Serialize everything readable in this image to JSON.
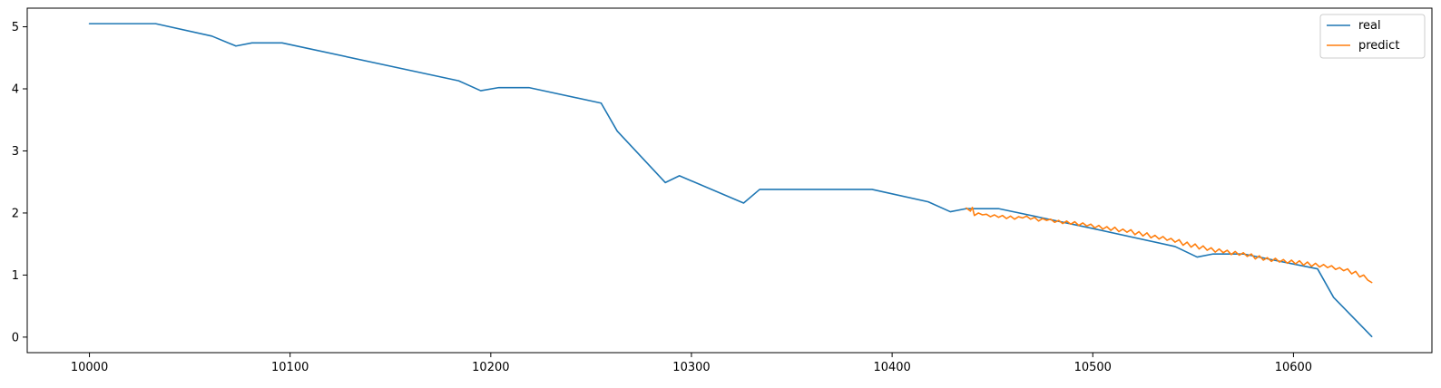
{
  "chart_data": {
    "type": "line",
    "title": "",
    "xlabel": "",
    "ylabel": "",
    "xlim": [
      9969,
      10669
    ],
    "ylim": [
      -0.25,
      5.3
    ],
    "xticks": [
      10000,
      10100,
      10200,
      10300,
      10400,
      10500,
      10600
    ],
    "yticks": [
      0,
      1,
      2,
      3,
      4,
      5
    ],
    "grid": false,
    "legend_position": "top-right",
    "series": [
      {
        "name": "real",
        "color": "#1f77b4",
        "points": [
          [
            10000,
            5.05
          ],
          [
            10033,
            5.05
          ],
          [
            10061,
            4.85
          ],
          [
            10073,
            4.69
          ],
          [
            10081,
            4.74
          ],
          [
            10096,
            4.74
          ],
          [
            10184,
            4.13
          ],
          [
            10195,
            3.97
          ],
          [
            10204,
            4.02
          ],
          [
            10219,
            4.02
          ],
          [
            10255,
            3.77
          ],
          [
            10263,
            3.32
          ],
          [
            10287,
            2.49
          ],
          [
            10294,
            2.6
          ],
          [
            10326,
            2.16
          ],
          [
            10334,
            2.38
          ],
          [
            10390,
            2.38
          ],
          [
            10418,
            2.18
          ],
          [
            10429,
            2.02
          ],
          [
            10437,
            2.07
          ],
          [
            10453,
            2.07
          ],
          [
            10500,
            1.75
          ],
          [
            10541,
            1.46
          ],
          [
            10552,
            1.29
          ],
          [
            10560,
            1.34
          ],
          [
            10575,
            1.34
          ],
          [
            10612,
            1.1
          ],
          [
            10620,
            0.64
          ],
          [
            10639,
            0.01
          ]
        ]
      },
      {
        "name": "predict",
        "color": "#ff7f0e",
        "points": [
          [
            10437,
            2.08
          ],
          [
            10439,
            2.03
          ],
          [
            10440,
            2.09
          ],
          [
            10441,
            1.96
          ],
          [
            10443,
            2.0
          ],
          [
            10445,
            1.97
          ],
          [
            10447,
            1.98
          ],
          [
            10449,
            1.94
          ],
          [
            10451,
            1.97
          ],
          [
            10453,
            1.93
          ],
          [
            10455,
            1.96
          ],
          [
            10457,
            1.91
          ],
          [
            10459,
            1.95
          ],
          [
            10461,
            1.9
          ],
          [
            10463,
            1.94
          ],
          [
            10465,
            1.92
          ],
          [
            10467,
            1.95
          ],
          [
            10469,
            1.9
          ],
          [
            10471,
            1.93
          ],
          [
            10473,
            1.87
          ],
          [
            10475,
            1.91
          ],
          [
            10477,
            1.88
          ],
          [
            10479,
            1.9
          ],
          [
            10481,
            1.85
          ],
          [
            10483,
            1.88
          ],
          [
            10485,
            1.83
          ],
          [
            10487,
            1.87
          ],
          [
            10489,
            1.82
          ],
          [
            10491,
            1.86
          ],
          [
            10493,
            1.8
          ],
          [
            10495,
            1.84
          ],
          [
            10497,
            1.79
          ],
          [
            10499,
            1.82
          ],
          [
            10501,
            1.76
          ],
          [
            10503,
            1.8
          ],
          [
            10505,
            1.74
          ],
          [
            10507,
            1.78
          ],
          [
            10509,
            1.72
          ],
          [
            10511,
            1.77
          ],
          [
            10513,
            1.7
          ],
          [
            10515,
            1.74
          ],
          [
            10517,
            1.69
          ],
          [
            10519,
            1.73
          ],
          [
            10521,
            1.65
          ],
          [
            10523,
            1.7
          ],
          [
            10525,
            1.63
          ],
          [
            10527,
            1.68
          ],
          [
            10529,
            1.6
          ],
          [
            10531,
            1.64
          ],
          [
            10533,
            1.58
          ],
          [
            10535,
            1.62
          ],
          [
            10537,
            1.56
          ],
          [
            10539,
            1.59
          ],
          [
            10541,
            1.53
          ],
          [
            10543,
            1.57
          ],
          [
            10545,
            1.48
          ],
          [
            10547,
            1.53
          ],
          [
            10549,
            1.45
          ],
          [
            10551,
            1.5
          ],
          [
            10553,
            1.42
          ],
          [
            10555,
            1.47
          ],
          [
            10557,
            1.4
          ],
          [
            10559,
            1.44
          ],
          [
            10561,
            1.37
          ],
          [
            10563,
            1.42
          ],
          [
            10565,
            1.36
          ],
          [
            10567,
            1.4
          ],
          [
            10569,
            1.33
          ],
          [
            10571,
            1.38
          ],
          [
            10573,
            1.32
          ],
          [
            10575,
            1.36
          ],
          [
            10577,
            1.3
          ],
          [
            10579,
            1.34
          ],
          [
            10581,
            1.26
          ],
          [
            10583,
            1.31
          ],
          [
            10585,
            1.24
          ],
          [
            10587,
            1.28
          ],
          [
            10589,
            1.22
          ],
          [
            10591,
            1.27
          ],
          [
            10593,
            1.21
          ],
          [
            10595,
            1.25
          ],
          [
            10597,
            1.19
          ],
          [
            10599,
            1.24
          ],
          [
            10601,
            1.18
          ],
          [
            10603,
            1.23
          ],
          [
            10605,
            1.16
          ],
          [
            10607,
            1.21
          ],
          [
            10609,
            1.14
          ],
          [
            10611,
            1.19
          ],
          [
            10613,
            1.13
          ],
          [
            10615,
            1.17
          ],
          [
            10617,
            1.12
          ],
          [
            10619,
            1.15
          ],
          [
            10621,
            1.09
          ],
          [
            10623,
            1.12
          ],
          [
            10625,
            1.07
          ],
          [
            10627,
            1.1
          ],
          [
            10629,
            1.02
          ],
          [
            10631,
            1.06
          ],
          [
            10633,
            0.97
          ],
          [
            10635,
            1.0
          ],
          [
            10637,
            0.92
          ],
          [
            10639,
            0.88
          ]
        ]
      }
    ]
  }
}
